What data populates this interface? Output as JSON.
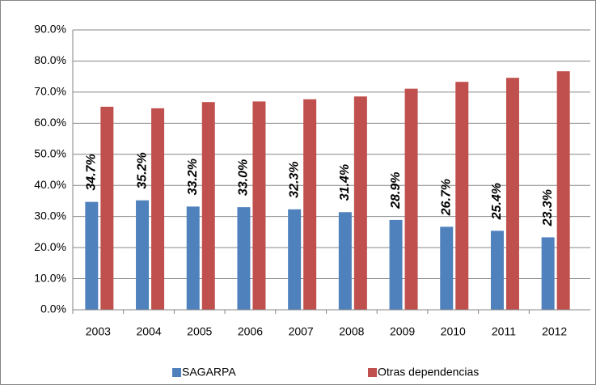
{
  "chart_data": {
    "type": "bar",
    "categories": [
      "2003",
      "2004",
      "2005",
      "2006",
      "2007",
      "2008",
      "2009",
      "2010",
      "2011",
      "2012"
    ],
    "series": [
      {
        "name": "SAGARPA",
        "color": "#4f81bd",
        "values": [
          34.7,
          35.2,
          33.2,
          33.0,
          32.3,
          31.4,
          28.9,
          26.7,
          25.4,
          23.3
        ],
        "value_labels": [
          "34.7%",
          "35.2%",
          "33.2%",
          "33.0%",
          "32.3%",
          "31.4%",
          "28.9%",
          "26.7%",
          "25.4%",
          "23.3%"
        ]
      },
      {
        "name": "Otras dependencias",
        "color": "#c0504d",
        "values": [
          65.3,
          64.8,
          66.8,
          67.0,
          67.7,
          68.6,
          71.1,
          73.3,
          74.6,
          76.7
        ]
      }
    ],
    "ylim": [
      0,
      90
    ],
    "yticks": [
      {
        "value": 0,
        "label": "0.0%"
      },
      {
        "value": 10,
        "label": "10.0%"
      },
      {
        "value": 20,
        "label": "20.0%"
      },
      {
        "value": 30,
        "label": "30.0%"
      },
      {
        "value": 40,
        "label": "40.0%"
      },
      {
        "value": 50,
        "label": "50.0%"
      },
      {
        "value": 60,
        "label": "60.0%"
      },
      {
        "value": 70,
        "label": "70.0%"
      },
      {
        "value": 80,
        "label": "80.0%"
      },
      {
        "value": 90,
        "label": "90.0%"
      }
    ],
    "grid": true,
    "legend": "bottom"
  }
}
